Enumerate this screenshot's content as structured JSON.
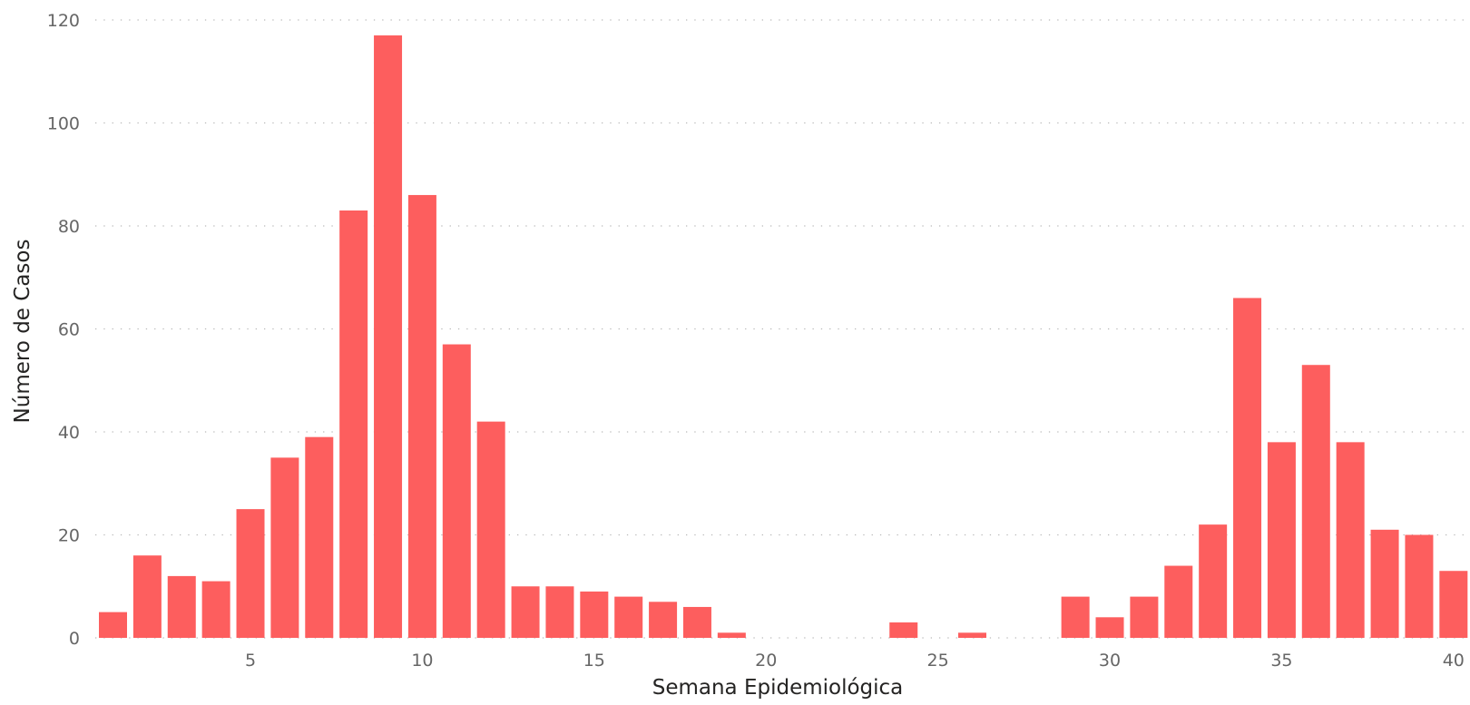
{
  "chart_data": {
    "type": "bar",
    "title": "",
    "xlabel": "Semana Epidemiológica",
    "ylabel": "Número de Casos",
    "x": [
      1,
      2,
      3,
      4,
      5,
      6,
      7,
      8,
      9,
      10,
      11,
      12,
      13,
      14,
      15,
      16,
      17,
      18,
      19,
      20,
      21,
      22,
      23,
      24,
      25,
      26,
      27,
      28,
      29,
      30,
      31,
      32,
      33,
      34,
      35,
      36,
      37,
      38,
      39,
      40
    ],
    "values": [
      5,
      16,
      12,
      11,
      25,
      35,
      39,
      83,
      117,
      86,
      57,
      42,
      10,
      10,
      9,
      8,
      7,
      6,
      1,
      0,
      0,
      0,
      0,
      3,
      0,
      1,
      0,
      0,
      8,
      4,
      8,
      14,
      22,
      66,
      38,
      53,
      38,
      21,
      20,
      13
    ],
    "x_ticks": [
      5,
      10,
      15,
      20,
      25,
      30,
      35,
      40
    ],
    "y_ticks": [
      0,
      20,
      40,
      60,
      80,
      100,
      120
    ],
    "ylim": [
      0,
      120
    ],
    "grid": "horizontal-dotted",
    "legend": "none",
    "bar_color": "#fd5e5e"
  }
}
